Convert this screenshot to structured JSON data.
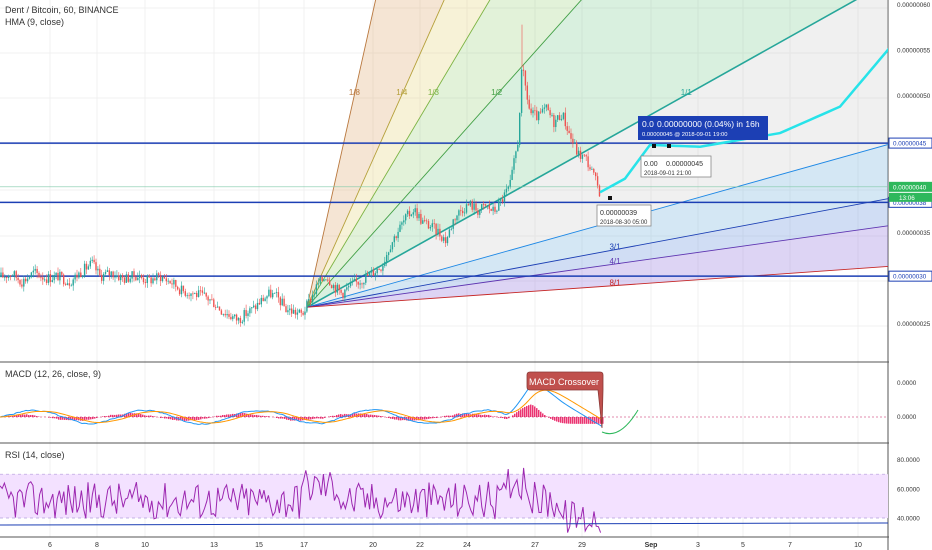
{
  "header": {
    "symbol_line": "Dent / Bitcoin, 60, BINANCE",
    "overlay_line": "HMA (9, close)"
  },
  "colors": {
    "candle_up": "#26a69a",
    "candle_down": "#ef5350",
    "hline": "#1c3fb4",
    "hma_projection": "#27e3e9",
    "macd_line": "#2196f3",
    "signal_line": "#ff9800",
    "macd_hist": "#e91e63",
    "rsi_line": "#9c27b0",
    "rsi_band": "#f3e1ff",
    "price_badge": "#1c3fb4",
    "current_price_badge": "#2eb85c",
    "callout": "#c0504d"
  },
  "chart_data": [
    {
      "type": "candlestick",
      "panel": "price",
      "title": "Dent / Bitcoin, 60, BINANCE",
      "overlay": "HMA (9, close)",
      "x_axis_ticks": [
        "6",
        "8",
        "10",
        "13",
        "15",
        "17",
        "20",
        "22",
        "24",
        "27",
        "29",
        "Sep",
        "3",
        "5",
        "7",
        "10"
      ],
      "y_axis_ticks": [
        "0.00000060",
        "0.00000055",
        "0.00000050",
        "0.00000045",
        "0.00000040",
        "0.00000035",
        "0.00000030",
        "0.00000025"
      ],
      "ylim": [
        2.1e-07,
        6.05e-07
      ],
      "price_path": [
        [
          0,
          3.01e-07
        ],
        [
          12,
          3.05e-07
        ],
        [
          22,
          2.96e-07
        ],
        [
          34,
          3.06e-07
        ],
        [
          46,
          3e-07
        ],
        [
          58,
          3.02e-07
        ],
        [
          70,
          2.96e-07
        ],
        [
          80,
          3.06e-07
        ],
        [
          92,
          3.16e-07
        ],
        [
          100,
          3.02e-07
        ],
        [
          112,
          3.06e-07
        ],
        [
          124,
          2.99e-07
        ],
        [
          136,
          3.03e-07
        ],
        [
          148,
          2.97e-07
        ],
        [
          160,
          3.02e-07
        ],
        [
          172,
          2.95e-07
        ],
        [
          182,
          2.86e-07
        ],
        [
          194,
          2.83e-07
        ],
        [
          206,
          2.79e-07
        ],
        [
          214,
          2.73e-07
        ],
        [
          222,
          2.64e-07
        ],
        [
          230,
          2.59e-07
        ],
        [
          238,
          2.54e-07
        ],
        [
          246,
          2.61e-07
        ],
        [
          254,
          2.67e-07
        ],
        [
          262,
          2.76e-07
        ],
        [
          270,
          2.83e-07
        ],
        [
          278,
          2.78e-07
        ],
        [
          286,
          2.66e-07
        ],
        [
          294,
          2.63e-07
        ],
        [
          302,
          2.6e-07
        ],
        [
          310,
          2.76e-07
        ],
        [
          318,
          2.93e-07
        ],
        [
          326,
          3.03e-07
        ],
        [
          334,
          2.91e-07
        ],
        [
          342,
          2.83e-07
        ],
        [
          350,
          2.91e-07
        ],
        [
          358,
          2.96e-07
        ],
        [
          366,
          3.01e-07
        ],
        [
          374,
          3.07e-07
        ],
        [
          382,
          3.14e-07
        ],
        [
          390,
          3.36e-07
        ],
        [
          398,
          3.52e-07
        ],
        [
          406,
          3.66e-07
        ],
        [
          414,
          3.76e-07
        ],
        [
          422,
          3.62e-07
        ],
        [
          430,
          3.57e-07
        ],
        [
          438,
          3.51e-07
        ],
        [
          446,
          3.41e-07
        ],
        [
          454,
          3.66e-07
        ],
        [
          462,
          3.76e-07
        ],
        [
          470,
          3.81e-07
        ],
        [
          478,
          3.74e-07
        ],
        [
          486,
          3.79e-07
        ],
        [
          494,
          3.73e-07
        ],
        [
          502,
          3.86e-07
        ],
        [
          510,
          4.01e-07
        ],
        [
          514,
          4.26e-07
        ],
        [
          518,
          4.51e-07
        ],
        [
          522,
          5.31e-07
        ],
        [
          526,
          5.06e-07
        ],
        [
          530,
          4.81e-07
        ],
        [
          538,
          4.76e-07
        ],
        [
          546,
          4.86e-07
        ],
        [
          554,
          4.71e-07
        ],
        [
          562,
          4.81e-07
        ],
        [
          570,
          4.56e-07
        ],
        [
          578,
          4.36e-07
        ],
        [
          586,
          4.31e-07
        ],
        [
          594,
          4.11e-07
        ],
        [
          600,
          3.94e-07
        ]
      ],
      "hma_projection": [
        [
          600,
          3.94e-07
        ],
        [
          625,
          4.09e-07
        ],
        [
          650,
          4.46e-07
        ],
        [
          700,
          4.44e-07
        ],
        [
          780,
          4.59e-07
        ],
        [
          840,
          4.88e-07
        ],
        [
          890,
          5.53e-07
        ]
      ],
      "horizontal_lines": [
        4.48e-07,
        3.83e-07,
        3.02e-07
      ],
      "gann_fan": {
        "origin": [
          307,
          2.68e-07
        ],
        "reference_point": [
          600,
          4.48e-07
        ],
        "angles": [
          "1/8",
          "1/4",
          "1/3",
          "1/2",
          "1/1",
          "2/1",
          "3/1",
          "4/1",
          "8/1"
        ]
      },
      "current_price_label": "0.00000040",
      "countdown_label": "13:06",
      "level_labels": [
        "0.00000045",
        "0.00000038",
        "0.00000030"
      ],
      "annotations": [
        {
          "text": "0.00000000 (0.04%) in 16h",
          "prefix": "0.0",
          "line2": "0.00000045  @ 2018-09-01  19:00"
        },
        {
          "text": "0.00000045",
          "prefix": "0.00",
          "line2": "2018-09-01 21:00"
        },
        {
          "text": "0.00000039",
          "line2": "2018-08-30 05:00"
        }
      ]
    },
    {
      "type": "line",
      "panel": "macd",
      "title": "MACD (12, 26, close, 9)",
      "y_axis_ticks": [
        "0.0000",
        "0.0000"
      ],
      "callout": "MACD Crossover"
    },
    {
      "type": "line",
      "panel": "rsi",
      "title": "RSI (14, close)",
      "y_axis_ticks": [
        "80.0000",
        "60.0000",
        "40.0000"
      ],
      "ylim": [
        27,
        90
      ],
      "band": [
        40,
        70
      ]
    }
  ]
}
